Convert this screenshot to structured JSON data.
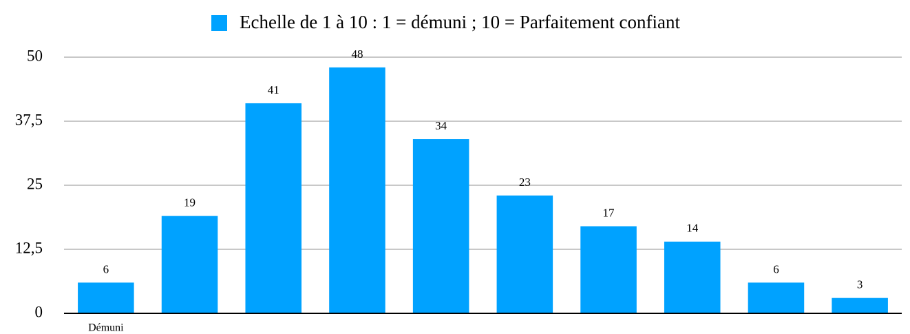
{
  "chart_data": {
    "type": "bar",
    "legend": "Echelle de 1 à 10 : 1 = démuni ; 10 = Parfaitement confiant",
    "categories": [
      "Démuni",
      null,
      null,
      null,
      null,
      null,
      null,
      null,
      null,
      null
    ],
    "values": [
      6,
      19,
      41,
      48,
      34,
      23,
      17,
      14,
      6,
      3
    ],
    "color": "#00a2ff",
    "ylim": [
      0,
      50
    ],
    "yticks": [
      0,
      {
        "value": 12.5,
        "label": "12,5"
      },
      25,
      {
        "value": 37.5,
        "label": "37,5"
      },
      50
    ],
    "grid": true
  }
}
